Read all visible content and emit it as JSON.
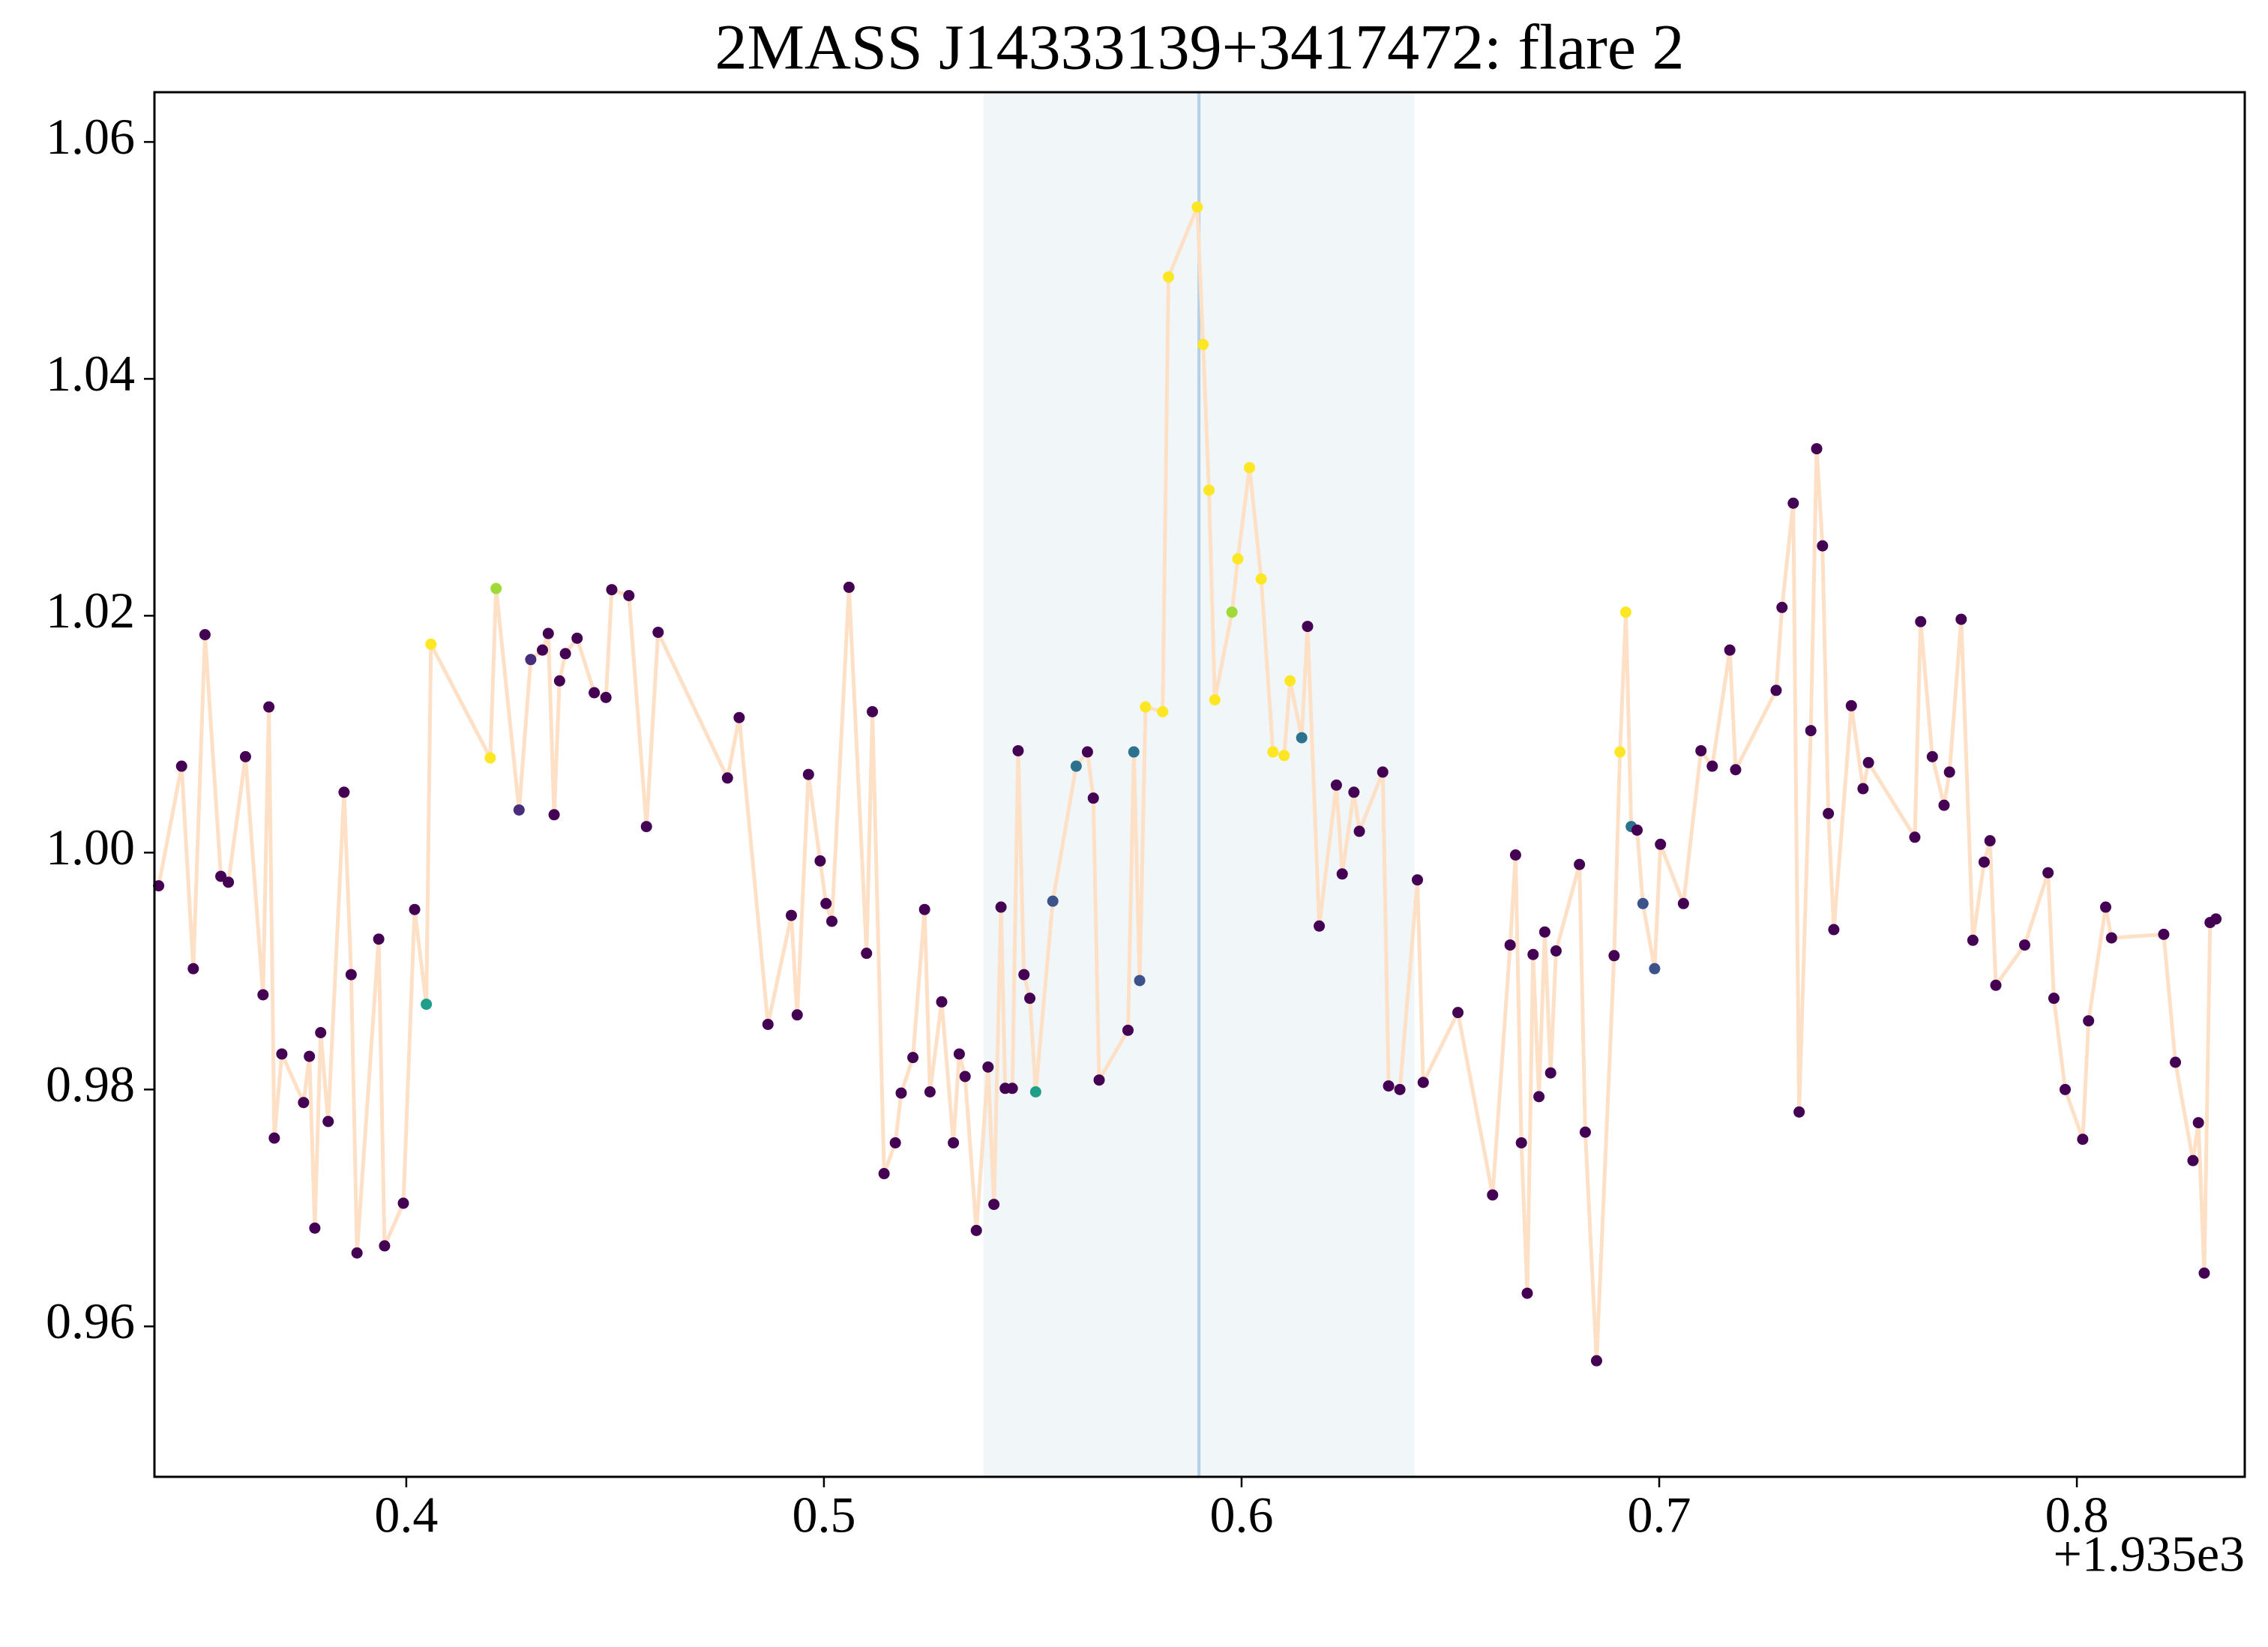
{
  "chart_data": {
    "type": "scatter_line",
    "title": "2MASS J14333139+3417472: flare 2",
    "x_offset_label": "+1.935e3",
    "xlim": [
      1935.3397,
      1935.8402
    ],
    "xticks": [
      {
        "value": 1935.4,
        "label": "0.4"
      },
      {
        "value": 1935.5,
        "label": "0.5"
      },
      {
        "value": 1935.6,
        "label": "0.6"
      },
      {
        "value": 1935.7,
        "label": "0.7"
      },
      {
        "value": 1935.8,
        "label": "0.8"
      }
    ],
    "ylim": [
      0.9473,
      1.0642
    ],
    "yticks": [
      0.96,
      0.98,
      {
        "value": 1,
        "label": "1.00"
      },
      1.02,
      1.04,
      1.06
    ],
    "span": [
      1935.5382,
      1935.6414
    ],
    "span_color": "#f1f6f8",
    "vline": 1935.5898,
    "vline_color": "#b4cfe6",
    "line_color": "#fde0c5",
    "series": [
      {
        "x": [
          1935.3407,
          1935.3462,
          1935.349,
          1935.3518,
          1935.3556,
          1935.3574,
          1935.3615,
          1935.3657,
          1935.3671,
          1935.3684,
          1935.3702,
          1935.3754,
          1935.3768,
          1935.3781,
          1935.3795,
          1935.3813,
          1935.3851,
          1935.3868,
          1935.3882,
          1935.3934,
          1935.3948,
          1935.3993,
          1935.402,
          1935.4048,
          1935.4059,
          1935.4201,
          1935.4215,
          1935.427,
          1935.4298,
          1935.4326,
          1935.434,
          1935.4354,
          1935.4367,
          1935.4381,
          1935.4409,
          1935.445,
          1935.4478,
          1935.4492,
          1935.4533,
          1935.4575,
          1935.4603,
          1935.4769,
          1935.4797,
          1935.4866,
          1935.4922,
          1935.4936,
          1935.4963,
          1935.4991,
          1935.5005,
          1935.5019,
          1935.506,
          1935.5102,
          1935.5116,
          1935.5144,
          1935.5171,
          1935.5185,
          1935.5213,
          1935.5241,
          1935.5254,
          1935.5282,
          1935.531,
          1935.5324,
          1935.5338,
          1935.5365,
          1935.5393,
          1935.5407,
          1935.5424,
          1935.5434,
          1935.5451,
          1935.5465,
          1935.5479,
          1935.5493,
          1935.5507,
          1935.5548,
          1935.5604,
          1935.5631,
          1935.5645,
          1935.5659,
          1935.5728,
          1935.5742,
          1935.5756,
          1935.577,
          1935.5811,
          1935.5825,
          1935.5894,
          1935.5908,
          1935.5922,
          1935.5936,
          1935.5977,
          1935.5991,
          1935.6019,
          1935.6047,
          1935.6075,
          1935.6102,
          1935.6116,
          1935.6144,
          1935.6158,
          1935.6186,
          1935.6227,
          1935.6241,
          1935.6269,
          1935.6282,
          1935.6338,
          1935.6352,
          1935.6379,
          1935.6421,
          1935.6435,
          1935.6518,
          1935.6601,
          1935.6643,
          1935.6656,
          1935.667,
          1935.6684,
          1935.6698,
          1935.6712,
          1935.6726,
          1935.674,
          1935.6753,
          1935.6809,
          1935.6823,
          1935.685,
          1935.6892,
          1935.6906,
          1935.692,
          1935.6933,
          1935.6947,
          1935.6961,
          1935.6989,
          1935.7003,
          1935.7058,
          1935.71,
          1935.7127,
          1935.7169,
          1935.7183,
          1935.728,
          1935.7294,
          1935.7321,
          1935.7335,
          1935.7363,
          1935.7377,
          1935.7391,
          1935.7405,
          1935.7418,
          1935.746,
          1935.7488,
          1935.7501,
          1935.7612,
          1935.7626,
          1935.7654,
          1935.7682,
          1935.7695,
          1935.7723,
          1935.7751,
          1935.7778,
          1935.7792,
          1935.7806,
          1935.7875,
          1935.7931,
          1935.7945,
          1935.7972,
          1935.8014,
          1935.8028,
          1935.8069,
          1935.8083,
          1935.8208,
          1935.8236,
          1935.8278,
          1935.8291,
          1935.8305,
          1935.8319,
          1935.8333
        ],
        "values": [
          0.9972,
          1.0073,
          0.9902,
          1.0184,
          0.998,
          0.9975,
          1.0081,
          0.988,
          1.0123,
          0.9759,
          0.983,
          0.9789,
          0.9828,
          0.9683,
          0.9848,
          0.9773,
          1.0051,
          0.9897,
          0.9662,
          0.9927,
          0.9668,
          0.9704,
          0.9952,
          0.9872,
          1.0176,
          1.008,
          1.0223,
          1.0036,
          1.0163,
          1.0171,
          1.0185,
          1.0032,
          1.0145,
          1.0168,
          1.0181,
          1.0135,
          1.0131,
          1.0222,
          1.0217,
          1.0022,
          1.0186,
          1.0063,
          1.0114,
          0.9855,
          0.9947,
          0.9863,
          1.0066,
          0.9993,
          0.9957,
          0.9942,
          1.0224,
          0.9915,
          1.0119,
          0.9729,
          0.9755,
          0.9797,
          0.9827,
          0.9952,
          0.9798,
          0.9874,
          0.9755,
          0.983,
          0.9811,
          0.9681,
          0.9819,
          0.9703,
          0.9954,
          0.9801,
          0.9801,
          1.0086,
          0.9897,
          0.9877,
          0.9798,
          0.9959,
          1.0073,
          1.0085,
          1.0046,
          0.9808,
          0.985,
          1.0085,
          0.9892,
          1.0123,
          1.0119,
          1.0486,
          1.0545,
          1.0429,
          1.0306,
          1.0129,
          1.0203,
          1.0248,
          1.0325,
          1.0231,
          1.0085,
          1.0082,
          1.0145,
          1.0097,
          1.0191,
          0.9938,
          1.0057,
          0.9982,
          1.0051,
          1.0018,
          1.0068,
          0.9803,
          0.98,
          0.9977,
          0.9806,
          0.9865,
          0.9711,
          0.9922,
          0.9998,
          0.9755,
          0.9628,
          0.9914,
          0.9794,
          0.9933,
          0.9814,
          0.9917,
          0.999,
          0.9764,
          0.9571,
          0.9913,
          1.0085,
          1.0203,
          1.0022,
          1.0019,
          0.9957,
          0.9902,
          1.0007,
          0.9957,
          1.0086,
          1.0073,
          1.0171,
          1.007,
          1.0137,
          1.0207,
          1.0295,
          0.9781,
          1.0103,
          1.0341,
          1.0259,
          1.0033,
          0.9935,
          1.0124,
          1.0054,
          1.0076,
          1.0013,
          1.0195,
          1.0081,
          1.004,
          1.0068,
          1.0197,
          0.9926,
          0.9992,
          1.001,
          0.9888,
          0.9922,
          0.9983,
          0.9877,
          0.98,
          0.9758,
          0.9858,
          0.9954,
          0.9928,
          0.9931,
          0.9823,
          0.974,
          0.9772,
          0.9645,
          0.9941,
          0.9944
        ],
        "colors": [
          "#440154",
          "#440154",
          "#440154",
          "#440154",
          "#440154",
          "#440154",
          "#440154",
          "#440154",
          "#440154",
          "#440154",
          "#440154",
          "#440154",
          "#440154",
          "#440154",
          "#440154",
          "#440154",
          "#440154",
          "#440154",
          "#440154",
          "#440154",
          "#440154",
          "#440154",
          "#440154",
          "#1f9e89",
          "#fde725",
          "#fde725",
          "#a0da39",
          "#472d7b",
          "#472d7b",
          "#440154",
          "#440154",
          "#440154",
          "#440154",
          "#440154",
          "#440154",
          "#440154",
          "#440154",
          "#440154",
          "#440154",
          "#440154",
          "#440154",
          "#440154",
          "#440154",
          "#440154",
          "#440154",
          "#440154",
          "#440154",
          "#440154",
          "#440154",
          "#440154",
          "#440154",
          "#440154",
          "#440154",
          "#440154",
          "#440154",
          "#440154",
          "#440154",
          "#440154",
          "#440154",
          "#440154",
          "#440154",
          "#440154",
          "#440154",
          "#440154",
          "#440154",
          "#440154",
          "#440154",
          "#440154",
          "#440154",
          "#440154",
          "#440154",
          "#440154",
          "#1f9e89",
          "#3b528b",
          "#2c728e",
          "#440154",
          "#440154",
          "#440154",
          "#440154",
          "#2c728e",
          "#3b528b",
          "#fde725",
          "#fde725",
          "#fde725",
          "#fde725",
          "#fde725",
          "#fde725",
          "#fde725",
          "#a0da39",
          "#fde725",
          "#fde725",
          "#fde725",
          "#fde725",
          "#fde725",
          "#fde725",
          "#2c728e",
          "#440154",
          "#440154",
          "#440154",
          "#440154",
          "#440154",
          "#440154",
          "#440154",
          "#440154",
          "#440154",
          "#440154",
          "#440154",
          "#440154",
          "#440154",
          "#440154",
          "#440154",
          "#440154",
          "#440154",
          "#440154",
          "#440154",
          "#440154",
          "#440154",
          "#440154",
          "#440154",
          "#440154",
          "#440154",
          "#440154",
          "#fde725",
          "#fde725",
          "#2c728e",
          "#440154",
          "#3b528b",
          "#3b528b",
          "#440154",
          "#440154",
          "#440154",
          "#440154",
          "#440154",
          "#440154",
          "#440154",
          "#440154",
          "#440154",
          "#440154",
          "#440154",
          "#440154",
          "#440154",
          "#440154",
          "#440154",
          "#440154",
          "#440154",
          "#440154",
          "#440154",
          "#440154",
          "#440154",
          "#440154",
          "#440154",
          "#440154",
          "#440154",
          "#440154",
          "#440154",
          "#440154",
          "#440154",
          "#440154",
          "#440154",
          "#440154",
          "#440154",
          "#440154",
          "#440154",
          "#440154",
          "#440154",
          "#440154",
          "#440154",
          "#440154",
          "#440154",
          "#440154",
          "#440154"
        ]
      }
    ]
  }
}
